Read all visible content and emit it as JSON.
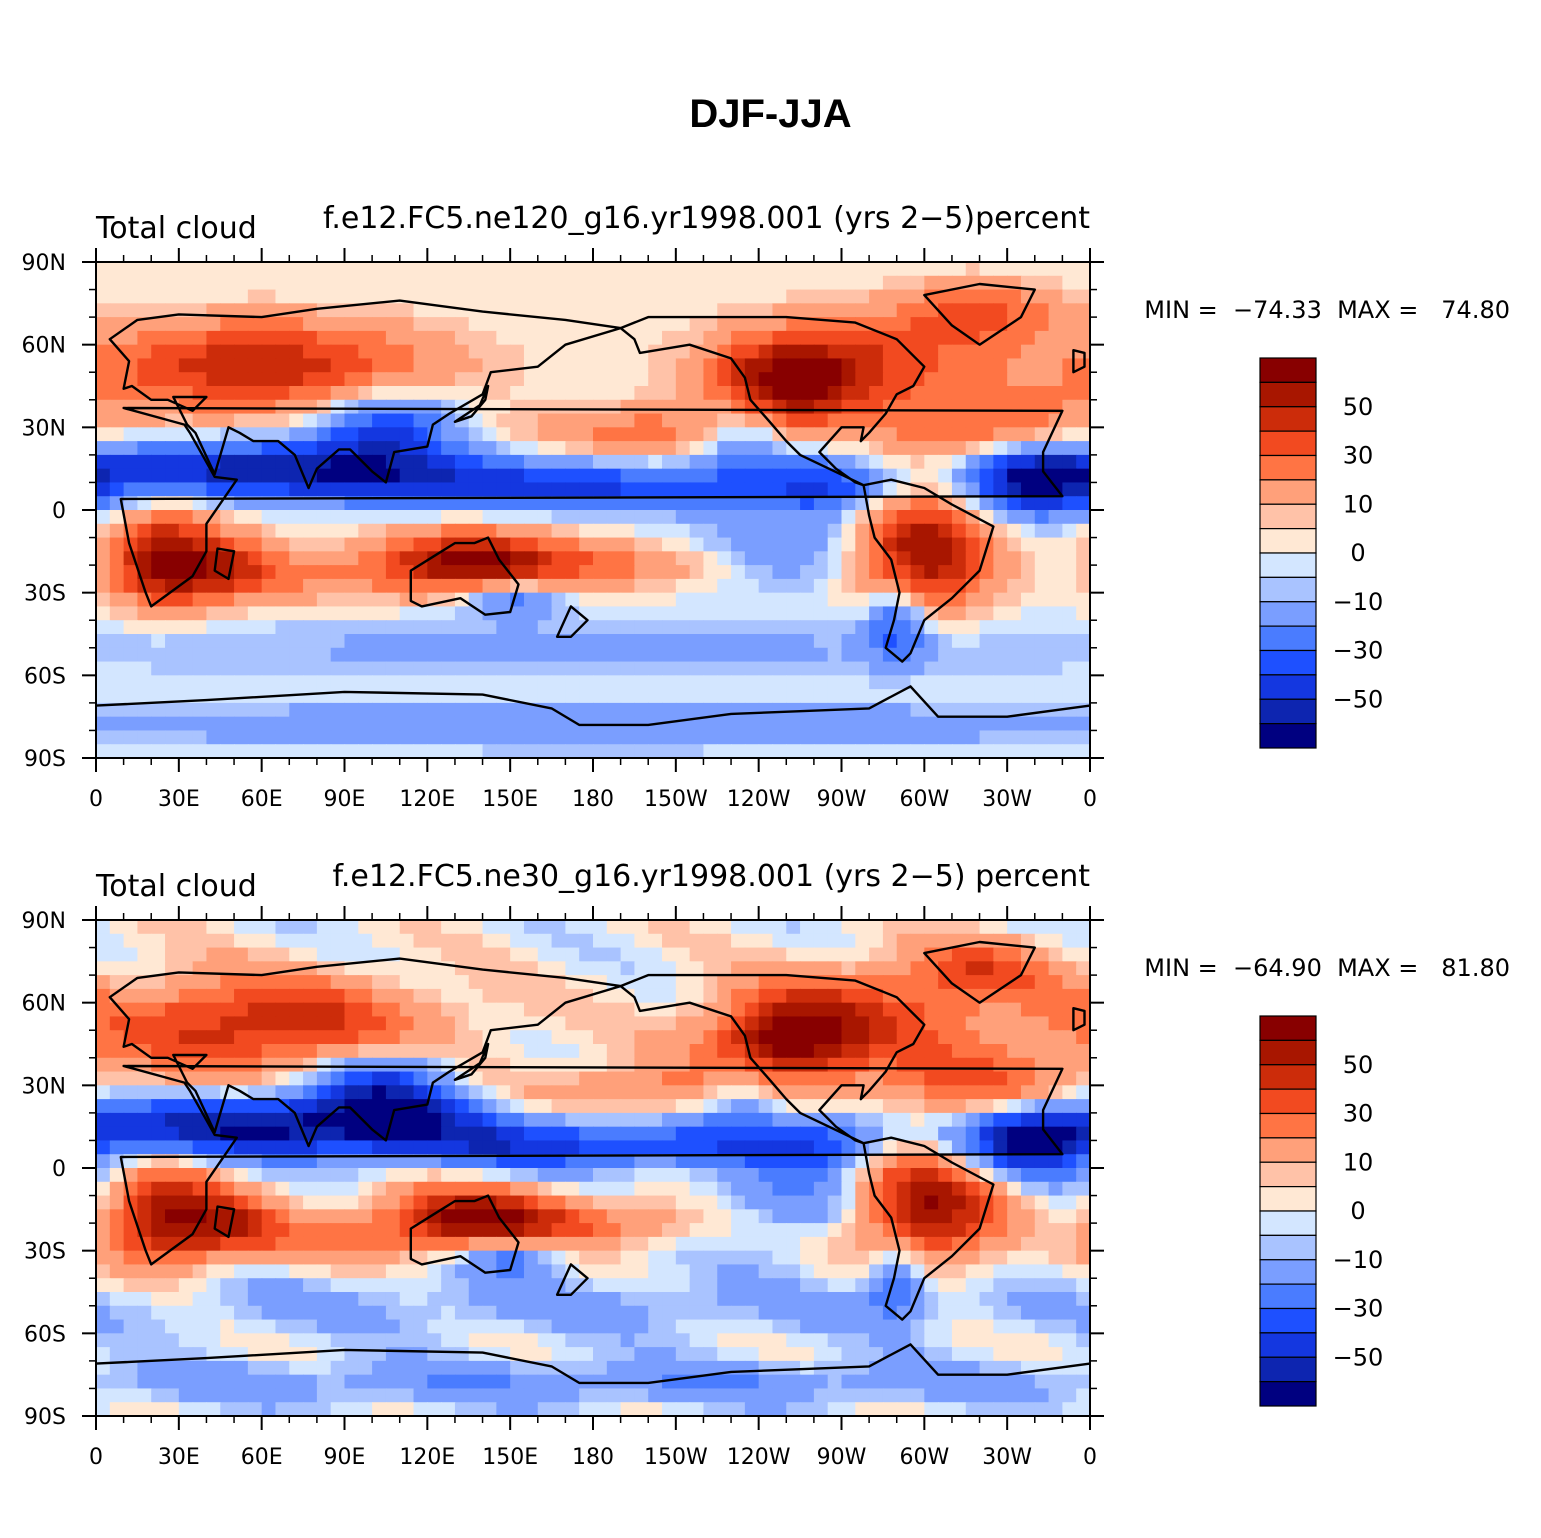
{
  "figure": {
    "title": "DJF-JJA"
  },
  "colors": {
    "levels": [
      "#000080",
      "#0d25b0",
      "#1437e0",
      "#1e50ff",
      "#4a7cff",
      "#7a9eff",
      "#a9c3ff",
      "#d3e6ff",
      "#ffe8d4",
      "#ffc2a8",
      "#ffa07a",
      "#ff7444",
      "#f24a20",
      "#cc2c0a",
      "#a81600",
      "#880000"
    ],
    "coast": "#000000",
    "axis": "#000000"
  },
  "chart_data": [
    {
      "type": "heatmap",
      "left_title": "Total cloud",
      "center_title": "f.e12.FC5.ne120_g16.yr1998.001 (yrs 2−5)percent",
      "min_max_text": "MIN =  −74.33  MAX =   74.80",
      "min": -74.33,
      "max": 74.8,
      "x_ticks": [
        "0",
        "30E",
        "60E",
        "90E",
        "120E",
        "150E",
        "180",
        "150W",
        "120W",
        "90W",
        "60W",
        "30W",
        "0"
      ],
      "y_ticks": [
        "90N",
        "60N",
        "30N",
        "0",
        "30S",
        "60S",
        "90S"
      ],
      "colorbar": {
        "levels": [
          -70,
          -60,
          -50,
          -40,
          -30,
          -20,
          -10,
          -5,
          0,
          5,
          10,
          20,
          30,
          40,
          50,
          60,
          70
        ],
        "labels": [
          "50",
          "30",
          "10",
          "0",
          "−10",
          "−30",
          "−50"
        ]
      }
    },
    {
      "type": "heatmap",
      "left_title": "Total cloud",
      "center_title": "f.e12.FC5.ne30_g16.yr1998.001 (yrs 2−5) percent",
      "min_max_text": "MIN =  −64.90  MAX =   81.80",
      "min": -64.9,
      "max": 81.8,
      "x_ticks": [
        "0",
        "30E",
        "60E",
        "90E",
        "120E",
        "150E",
        "180",
        "150W",
        "120W",
        "90W",
        "60W",
        "30W",
        "0"
      ],
      "y_ticks": [
        "90N",
        "60N",
        "30N",
        "0",
        "30S",
        "60S",
        "90S"
      ],
      "colorbar": {
        "levels": [
          -70,
          -60,
          -50,
          -40,
          -30,
          -20,
          -10,
          -5,
          0,
          5,
          10,
          20,
          30,
          40,
          50,
          60,
          70
        ],
        "labels": [
          "50",
          "30",
          "10",
          "0",
          "−10",
          "−30",
          "−50"
        ]
      }
    }
  ]
}
